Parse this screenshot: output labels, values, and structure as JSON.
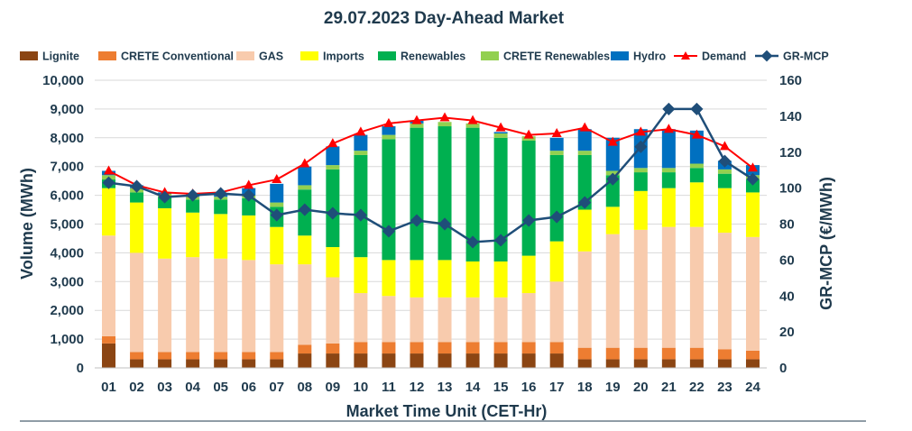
{
  "chart_data": {
    "type": "bar",
    "subtype": "stacked-bar-with-lines",
    "title": "29.07.2023  Day-Ahead Market",
    "xlabel": "Market Time Unit (CET-Hr)",
    "ylabel": "Volume (MWh)",
    "y2label": "GR-MCP (€/MWh)",
    "ylim": [
      0,
      10000
    ],
    "y2lim": [
      0,
      160
    ],
    "yticks": [
      "0",
      "1,000",
      "2,000",
      "3,000",
      "4,000",
      "5,000",
      "6,000",
      "7,000",
      "8,000",
      "9,000",
      "10,000"
    ],
    "y2ticks": [
      "0",
      "20",
      "40",
      "60",
      "80",
      "100",
      "120",
      "140",
      "160"
    ],
    "grid": true,
    "legend_position": "top",
    "categories": [
      "01",
      "02",
      "03",
      "04",
      "05",
      "06",
      "07",
      "08",
      "09",
      "10",
      "11",
      "12",
      "13",
      "14",
      "15",
      "16",
      "17",
      "18",
      "19",
      "20",
      "21",
      "22",
      "23",
      "24"
    ],
    "series": [
      {
        "name": "Lignite",
        "kind": "bar",
        "color": "#8b4513",
        "values": [
          850,
          300,
          300,
          300,
          300,
          300,
          300,
          500,
          500,
          500,
          500,
          500,
          500,
          500,
          500,
          500,
          500,
          300,
          300,
          300,
          300,
          300,
          300,
          300
        ]
      },
      {
        "name": "CRETE Conventional",
        "kind": "bar",
        "color": "#ed7d31",
        "values": [
          250,
          250,
          250,
          250,
          250,
          250,
          250,
          300,
          350,
          400,
          400,
          400,
          400,
          400,
          400,
          400,
          400,
          400,
          400,
          400,
          400,
          400,
          350,
          300
        ]
      },
      {
        "name": "GAS",
        "kind": "bar",
        "color": "#f8cbad",
        "values": [
          3500,
          3450,
          3250,
          3300,
          3250,
          3200,
          3050,
          2800,
          2300,
          1700,
          1600,
          1550,
          1550,
          1550,
          1550,
          1700,
          2100,
          3350,
          3950,
          4100,
          4200,
          4200,
          4050,
          3950
        ]
      },
      {
        "name": "Imports",
        "kind": "bar",
        "color": "#ffff00",
        "values": [
          1650,
          1750,
          1750,
          1550,
          1550,
          1550,
          1300,
          1000,
          1050,
          1250,
          1250,
          1300,
          1300,
          1250,
          1250,
          1300,
          1400,
          1450,
          950,
          1350,
          1350,
          1550,
          1550,
          1550
        ]
      },
      {
        "name": "Renewables",
        "kind": "bar",
        "color": "#00b050",
        "values": [
          300,
          350,
          400,
          450,
          500,
          600,
          700,
          1600,
          2700,
          3550,
          4200,
          4600,
          4650,
          4650,
          4300,
          4000,
          3000,
          1900,
          1100,
          650,
          550,
          500,
          500,
          450
        ]
      },
      {
        "name": "CRETE Renewables",
        "kind": "bar",
        "color": "#92d050",
        "values": [
          150,
          150,
          100,
          100,
          100,
          100,
          150,
          150,
          150,
          150,
          150,
          150,
          150,
          150,
          150,
          150,
          150,
          150,
          150,
          150,
          150,
          150,
          150,
          150
        ]
      },
      {
        "name": "Hydro",
        "kind": "bar",
        "color": "#0070c0",
        "values": [
          150,
          100,
          50,
          100,
          100,
          250,
          650,
          650,
          650,
          550,
          300,
          100,
          0,
          0,
          50,
          0,
          450,
          750,
          1150,
          1350,
          1350,
          1150,
          300,
          350
        ]
      },
      {
        "name": "Demand",
        "kind": "line",
        "axis": "left",
        "color": "#ff0000",
        "values": [
          6850,
          6350,
          6100,
          6050,
          6100,
          6350,
          6550,
          7100,
          7800,
          8200,
          8500,
          8600,
          8700,
          8600,
          8350,
          8100,
          8150,
          8350,
          7850,
          8200,
          8300,
          8100,
          7700,
          6950
        ]
      },
      {
        "name": "GR-MCP",
        "kind": "line",
        "axis": "right",
        "color": "#1f4e79",
        "values": [
          103,
          101,
          95,
          96,
          97,
          96,
          85,
          88,
          86,
          85,
          76,
          82,
          80,
          70,
          71,
          82,
          84,
          92,
          105,
          123,
          144,
          144,
          115,
          105
        ]
      }
    ]
  }
}
